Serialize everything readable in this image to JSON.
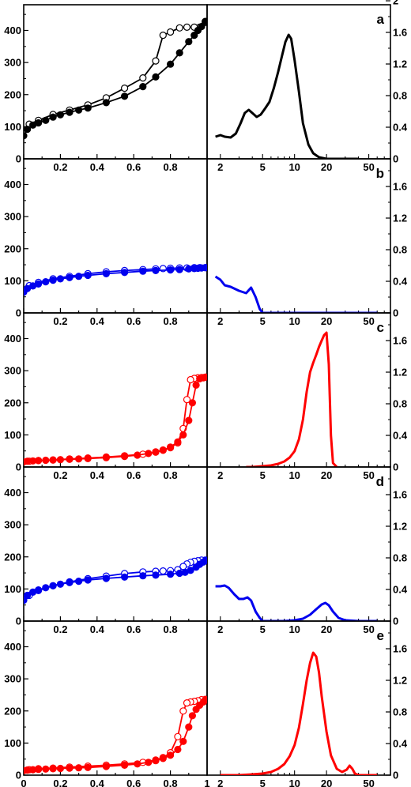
{
  "chart_data": {
    "type": "line",
    "layout": "5 rows x 2 columns (isotherm | pore size distribution)",
    "left_axes": {
      "x_ticks_inner": [
        "0.2",
        "0.4",
        "0.6",
        "0.8"
      ],
      "x_ticks_bottom": [
        "0",
        "0.2",
        "0.4",
        "0.6",
        "0.8",
        "1"
      ],
      "y_ticks": [
        "0",
        "100",
        "200",
        "300",
        "400"
      ],
      "xlim": [
        0,
        1.0
      ],
      "ylim": [
        0,
        480
      ]
    },
    "right_axes": {
      "x_scale": "log",
      "x_ticks": [
        "2",
        "5",
        "10",
        "20",
        "50"
      ],
      "y_ticks": [
        "0",
        "0.4",
        "0.8",
        "1.2",
        "1.6",
        "2"
      ],
      "xlim": [
        1.5,
        80
      ],
      "ylim": [
        0,
        1.95
      ]
    },
    "panels": [
      {
        "label": "a",
        "color": "#000000",
        "show_y_top_tick": true,
        "adsorption": {
          "x": [
            0.0,
            0.02,
            0.05,
            0.08,
            0.12,
            0.16,
            0.2,
            0.25,
            0.3,
            0.35,
            0.45,
            0.55,
            0.65,
            0.72,
            0.8,
            0.85,
            0.9,
            0.93,
            0.95,
            0.97,
            0.99
          ],
          "y": [
            72,
            92,
            105,
            112,
            120,
            130,
            137,
            145,
            152,
            158,
            175,
            195,
            225,
            255,
            295,
            330,
            365,
            385,
            400,
            412,
            428
          ]
        },
        "desorption": {
          "x": [
            0.99,
            0.96,
            0.93,
            0.89,
            0.85,
            0.8,
            0.76,
            0.72,
            0.65,
            0.55,
            0.45,
            0.35,
            0.25,
            0.16,
            0.08,
            0.03
          ],
          "y": [
            425,
            410,
            410,
            410,
            408,
            395,
            385,
            305,
            252,
            220,
            190,
            168,
            152,
            138,
            120,
            108
          ]
        },
        "psd": {
          "x": [
            1.8,
            1.9,
            2.0,
            2.2,
            2.5,
            2.8,
            3.1,
            3.4,
            3.7,
            4.0,
            4.4,
            4.8,
            5.3,
            5.8,
            6.4,
            7.0,
            7.6,
            8.2,
            8.8,
            9.3,
            10,
            11,
            12,
            13.5,
            15,
            17,
            20,
            25,
            30,
            40
          ],
          "y": [
            0.28,
            0.29,
            0.3,
            0.28,
            0.27,
            0.32,
            0.45,
            0.58,
            0.62,
            0.58,
            0.53,
            0.56,
            0.64,
            0.72,
            0.9,
            1.1,
            1.3,
            1.48,
            1.57,
            1.52,
            1.25,
            0.85,
            0.45,
            0.18,
            0.07,
            0.02,
            0.0,
            0.0,
            0.0,
            0.0
          ]
        }
      },
      {
        "label": "b",
        "color": "#0000ee",
        "show_y_top_tick": false,
        "adsorption": {
          "x": [
            0.0,
            0.02,
            0.05,
            0.08,
            0.12,
            0.16,
            0.2,
            0.25,
            0.3,
            0.35,
            0.45,
            0.55,
            0.65,
            0.72,
            0.8,
            0.85,
            0.9,
            0.93,
            0.95,
            0.97,
            0.99
          ],
          "y": [
            65,
            76,
            84,
            90,
            97,
            102,
            106,
            110,
            114,
            117,
            122,
            126,
            130,
            132,
            134,
            135,
            137,
            138,
            139,
            140,
            141
          ]
        },
        "desorption": {
          "x": [
            0.99,
            0.96,
            0.93,
            0.89,
            0.85,
            0.8,
            0.76,
            0.72,
            0.65,
            0.55,
            0.45,
            0.35,
            0.25,
            0.16,
            0.08,
            0.03
          ],
          "y": [
            141,
            141,
            141,
            140,
            140,
            139,
            138,
            137,
            135,
            132,
            128,
            122,
            114,
            106,
            95,
            85
          ]
        },
        "psd": {
          "x": [
            1.8,
            2.0,
            2.2,
            2.5,
            3.0,
            3.5,
            3.9,
            4.3,
            4.7,
            5.0,
            6,
            10,
            20,
            40,
            60
          ],
          "y": [
            0.46,
            0.42,
            0.35,
            0.33,
            0.28,
            0.25,
            0.32,
            0.2,
            0.05,
            0.0,
            0.0,
            0.0,
            0.0,
            0.0,
            0.0
          ]
        }
      },
      {
        "label": "c",
        "color": "#ff0000",
        "show_y_top_tick": false,
        "adsorption": {
          "x": [
            0.0,
            0.02,
            0.05,
            0.08,
            0.12,
            0.16,
            0.2,
            0.25,
            0.3,
            0.35,
            0.45,
            0.55,
            0.62,
            0.68,
            0.72,
            0.76,
            0.8,
            0.84,
            0.87,
            0.9,
            0.92,
            0.94,
            0.96,
            0.98,
            0.99
          ],
          "y": [
            16,
            18,
            19,
            20,
            21,
            22,
            23,
            24,
            25,
            26,
            29,
            33,
            37,
            42,
            47,
            53,
            62,
            78,
            100,
            145,
            200,
            255,
            275,
            278,
            280
          ]
        },
        "desorption": {
          "x": [
            0.99,
            0.97,
            0.95,
            0.93,
            0.91,
            0.89,
            0.87,
            0.84,
            0.8,
            0.76,
            0.72,
            0.65,
            0.55,
            0.45,
            0.35,
            0.25,
            0.16,
            0.08,
            0.03
          ],
          "y": [
            280,
            279,
            278,
            276,
            272,
            210,
            120,
            75,
            60,
            52,
            46,
            40,
            35,
            31,
            28,
            25,
            22,
            20,
            18
          ]
        },
        "psd": {
          "x": [
            3.5,
            4.0,
            5.0,
            6.0,
            7.0,
            8.0,
            9.0,
            10,
            11,
            12,
            13,
            14,
            15,
            16,
            17,
            18,
            19,
            20,
            21,
            22,
            23,
            25
          ],
          "y": [
            0.0,
            0.0,
            0.01,
            0.02,
            0.04,
            0.07,
            0.12,
            0.2,
            0.35,
            0.6,
            0.95,
            1.2,
            1.32,
            1.42,
            1.52,
            1.6,
            1.67,
            1.7,
            1.3,
            0.4,
            0.05,
            0.0
          ]
        }
      },
      {
        "label": "d",
        "color": "#0000ee",
        "show_y_top_tick": false,
        "adsorption": {
          "x": [
            0.0,
            0.02,
            0.05,
            0.08,
            0.12,
            0.16,
            0.2,
            0.25,
            0.3,
            0.35,
            0.45,
            0.55,
            0.65,
            0.72,
            0.8,
            0.85,
            0.88,
            0.91,
            0.94,
            0.96,
            0.98,
            0.99
          ],
          "y": [
            65,
            80,
            90,
            97,
            104,
            110,
            115,
            120,
            124,
            128,
            133,
            137,
            141,
            143,
            146,
            149,
            152,
            158,
            168,
            177,
            184,
            188
          ]
        },
        "desorption": {
          "x": [
            0.99,
            0.97,
            0.95,
            0.93,
            0.91,
            0.89,
            0.87,
            0.84,
            0.8,
            0.76,
            0.72,
            0.65,
            0.55,
            0.45,
            0.35,
            0.25,
            0.16,
            0.08,
            0.03
          ],
          "y": [
            190,
            190,
            188,
            186,
            183,
            178,
            170,
            160,
            157,
            156,
            155,
            153,
            148,
            140,
            132,
            122,
            110,
            95,
            80
          ]
        },
        "psd": {
          "x": [
            1.8,
            2.0,
            2.2,
            2.4,
            2.7,
            3.0,
            3.3,
            3.6,
            3.9,
            4.3,
            4.7,
            5.0,
            6,
            8,
            10,
            12,
            14,
            16,
            18,
            19.5,
            21,
            23,
            26,
            30,
            40,
            60
          ],
          "y": [
            0.44,
            0.44,
            0.45,
            0.42,
            0.34,
            0.28,
            0.28,
            0.3,
            0.26,
            0.12,
            0.04,
            0.0,
            0.0,
            0.0,
            0.01,
            0.03,
            0.08,
            0.15,
            0.21,
            0.23,
            0.2,
            0.12,
            0.04,
            0.01,
            0.0,
            0.0
          ]
        }
      },
      {
        "label": "e",
        "color": "#ff0000",
        "show_y_top_tick": false,
        "adsorption": {
          "x": [
            0.0,
            0.02,
            0.05,
            0.08,
            0.12,
            0.16,
            0.2,
            0.25,
            0.3,
            0.35,
            0.45,
            0.55,
            0.62,
            0.68,
            0.72,
            0.76,
            0.8,
            0.84,
            0.87,
            0.9,
            0.92,
            0.94,
            0.96,
            0.98,
            0.99
          ],
          "y": [
            14,
            16,
            17,
            18,
            19,
            20,
            21,
            22,
            23,
            24,
            27,
            31,
            35,
            40,
            45,
            52,
            62,
            80,
            105,
            150,
            185,
            205,
            218,
            228,
            234
          ]
        },
        "desorption": {
          "x": [
            0.99,
            0.97,
            0.95,
            0.93,
            0.91,
            0.89,
            0.87,
            0.84,
            0.8,
            0.76,
            0.72,
            0.65,
            0.55,
            0.45,
            0.35,
            0.25,
            0.16,
            0.08,
            0.03
          ],
          "y": [
            236,
            235,
            232,
            230,
            228,
            225,
            200,
            120,
            70,
            55,
            47,
            40,
            35,
            31,
            28,
            25,
            22,
            20,
            17
          ]
        },
        "psd": {
          "x": [
            2.0,
            3.0,
            4.0,
            5.0,
            6.0,
            7.0,
            8.0,
            9.0,
            10,
            11,
            12,
            13,
            14,
            15,
            16,
            17,
            18,
            20,
            22,
            25,
            28,
            31,
            33,
            35,
            37,
            40,
            50,
            60
          ],
          "y": [
            0.0,
            0.0,
            0.01,
            0.02,
            0.04,
            0.08,
            0.14,
            0.24,
            0.38,
            0.6,
            0.9,
            1.2,
            1.42,
            1.55,
            1.5,
            1.3,
            1.0,
            0.55,
            0.25,
            0.08,
            0.04,
            0.07,
            0.12,
            0.08,
            0.02,
            0.0,
            0.0,
            0.0
          ]
        }
      }
    ]
  }
}
